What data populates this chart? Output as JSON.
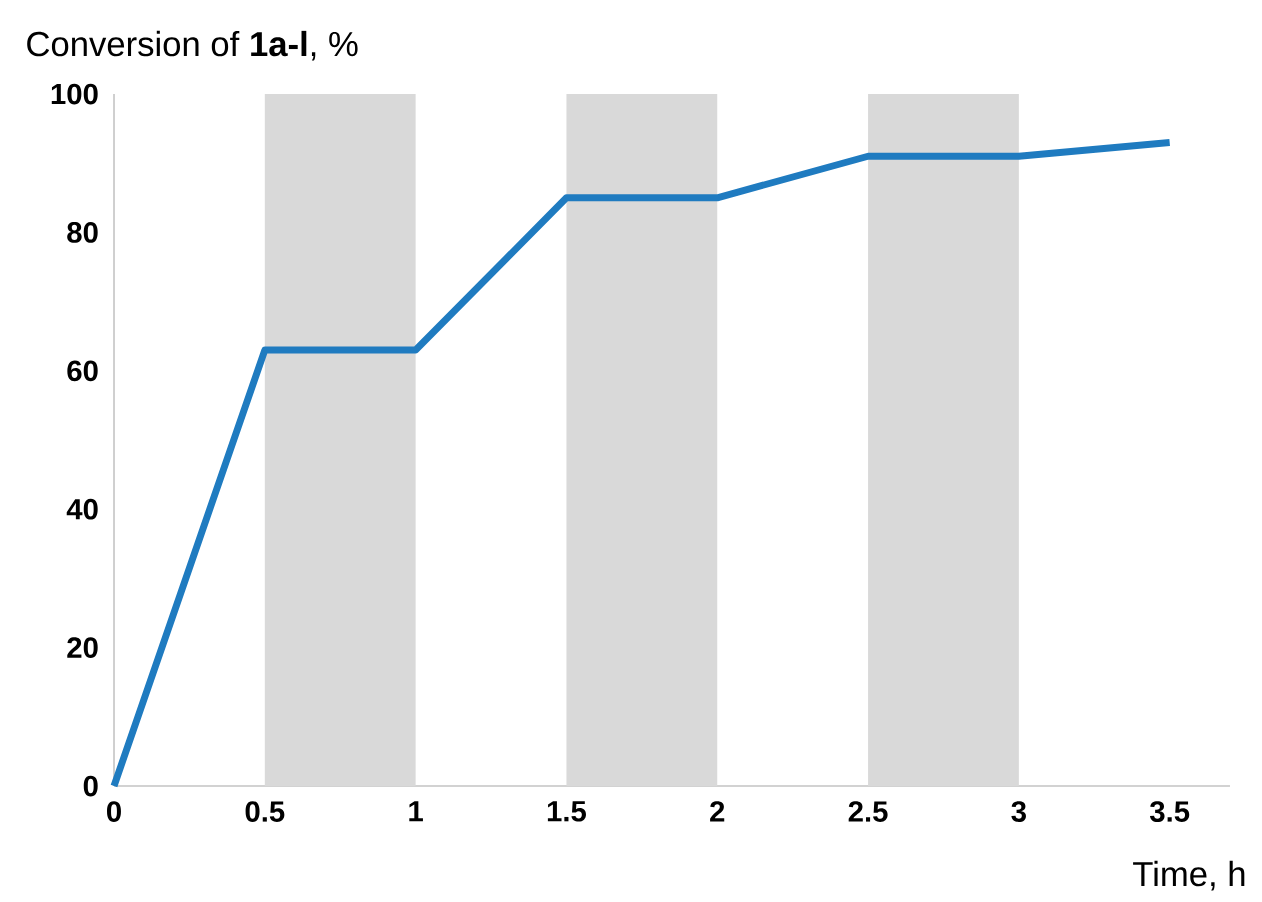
{
  "chart_data": {
    "type": "line",
    "ylabel": "Conversion of **1a-l**, %",
    "xlabel": "Time, h",
    "x": [
      0,
      0.5,
      1,
      1.5,
      2,
      2.5,
      3,
      3.5
    ],
    "series": [
      {
        "color": "#1f7bc0",
        "values": [
          0,
          63,
          63,
          85,
          85,
          91,
          91,
          93
        ]
      }
    ],
    "xlim": [
      0,
      3.7
    ],
    "ylim": [
      0,
      100
    ],
    "xticks": [
      0,
      0.5,
      1,
      1.5,
      2,
      2.5,
      3,
      3.5
    ],
    "yticks": [
      0,
      20,
      40,
      60,
      80,
      100
    ],
    "bands": [
      {
        "axis": "x",
        "from": 0.5,
        "to": 1,
        "color": "#d9d9d9"
      },
      {
        "axis": "x",
        "from": 1.5,
        "to": 2,
        "color": "#d9d9d9"
      },
      {
        "axis": "x",
        "from": 2.5,
        "to": 3,
        "color": "#d9d9d9"
      }
    ],
    "marker": "none",
    "line_style": "solid"
  }
}
